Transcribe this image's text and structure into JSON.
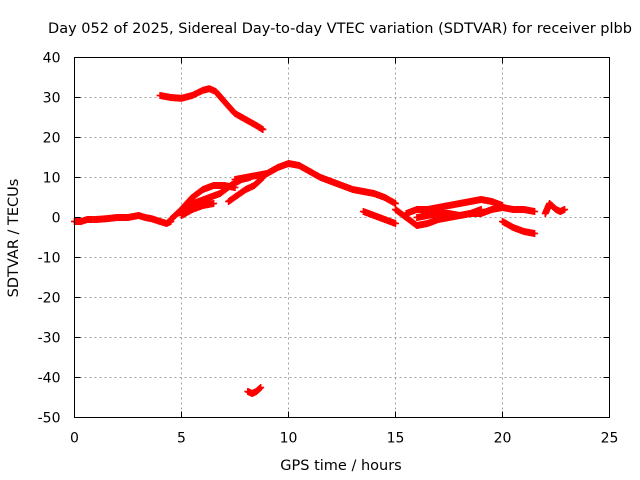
{
  "chart_data": {
    "type": "scatter",
    "title": "Day 052 of 2025, Sidereal Day-to-day VTEC variation (SDTVAR) for receiver plbb",
    "xlabel": "GPS time / hours",
    "ylabel": "SDTVAR / TECUs",
    "xlim": [
      0,
      25
    ],
    "ylim": [
      -50,
      40
    ],
    "xticks": [
      0,
      5,
      10,
      15,
      20,
      25
    ],
    "yticks": [
      40,
      30,
      20,
      10,
      0,
      -10,
      -20,
      -30,
      -40,
      -50
    ],
    "grid": true,
    "marker": "+",
    "color": "#ff0000",
    "series": [
      {
        "name": "seg-base",
        "x": [
          0.0,
          0.3,
          0.6,
          1.0,
          1.5,
          2.0,
          2.5,
          3.0,
          3.3,
          3.6,
          4.0,
          4.3,
          4.5
        ],
        "y": [
          -1,
          -1,
          -0.5,
          -0.5,
          -0.3,
          0,
          0,
          0.5,
          0,
          -0.3,
          -1,
          -1.5,
          -1
        ]
      },
      {
        "name": "seg-upper",
        "x": [
          4.0,
          4.5,
          5.0,
          5.5,
          6.0,
          6.3,
          6.6,
          7.0,
          7.5,
          8.0,
          8.5,
          8.8
        ],
        "y": [
          30.5,
          30,
          29.8,
          30.5,
          31.8,
          32.2,
          31.5,
          29,
          26,
          24.5,
          23,
          22
        ]
      },
      {
        "name": "seg-rise-a",
        "x": [
          4.5,
          5.0,
          5.5,
          6.0,
          6.5,
          7.0,
          7.5
        ],
        "y": [
          -0.5,
          2,
          5,
          7,
          8,
          8,
          7.5
        ]
      },
      {
        "name": "seg-rise-b",
        "x": [
          4.8,
          5.3,
          5.8,
          6.3,
          6.8,
          7.3,
          7.8,
          8.2
        ],
        "y": [
          1,
          3,
          4,
          5,
          6,
          8,
          9.5,
          10
        ]
      },
      {
        "name": "seg-rise-c",
        "x": [
          5.0,
          5.5,
          6.0,
          6.5
        ],
        "y": [
          0.5,
          2,
          3,
          3.5
        ]
      },
      {
        "name": "seg-rise-d",
        "x": [
          7.2,
          7.6,
          8.0,
          8.4,
          8.8
        ],
        "y": [
          4,
          5.5,
          7,
          8,
          10
        ]
      },
      {
        "name": "seg-main",
        "x": [
          7.5,
          8.0,
          8.5,
          9.0,
          9.5,
          10.0,
          10.5,
          11.0,
          11.5,
          12.0,
          12.5,
          13.0,
          13.5,
          14.0,
          14.5,
          15.0
        ],
        "y": [
          9.5,
          10,
          10.5,
          11,
          12.5,
          13.5,
          13,
          11.5,
          10,
          9,
          8,
          7,
          6.5,
          6,
          5,
          3.5
        ]
      },
      {
        "name": "seg-low",
        "x": [
          8.1,
          8.3,
          8.5,
          8.7
        ],
        "y": [
          -43.5,
          -44,
          -43.5,
          -42.5
        ]
      },
      {
        "name": "seg-mid-a",
        "x": [
          13.5,
          14.0,
          14.5,
          15.0
        ],
        "y": [
          1.5,
          0.5,
          -0.5,
          -1.5
        ]
      },
      {
        "name": "seg-mid-b",
        "x": [
          15.0,
          15.5,
          16.0,
          16.5,
          17.0,
          17.5,
          18.0,
          18.5,
          19.0,
          19.5,
          20.0,
          20.5,
          21.0,
          21.5
        ],
        "y": [
          2,
          0,
          -2,
          -1.5,
          -0.5,
          0,
          0.5,
          1,
          1,
          2,
          2.5,
          2,
          2,
          1.5
        ]
      },
      {
        "name": "seg-mid-c",
        "x": [
          15.5,
          16.0,
          16.5,
          17.0,
          17.5,
          18.0,
          18.5,
          19.0,
          19.5,
          20.0
        ],
        "y": [
          1,
          2,
          2,
          2.5,
          3,
          3.5,
          4,
          4.5,
          4,
          3
        ]
      },
      {
        "name": "seg-mid-d",
        "x": [
          16.0,
          16.5,
          17.0,
          17.5,
          18.0,
          18.5,
          19.0
        ],
        "y": [
          0,
          0.5,
          1,
          1,
          0.5,
          1,
          2
        ]
      },
      {
        "name": "seg-dip",
        "x": [
          20.0,
          20.5,
          21.0,
          21.5
        ],
        "y": [
          -1,
          -2.5,
          -3.5,
          -4
        ]
      },
      {
        "name": "seg-end",
        "x": [
          22.0,
          22.2,
          22.5,
          22.7,
          22.9
        ],
        "y": [
          1,
          3.5,
          2,
          1.5,
          2
        ]
      }
    ]
  }
}
